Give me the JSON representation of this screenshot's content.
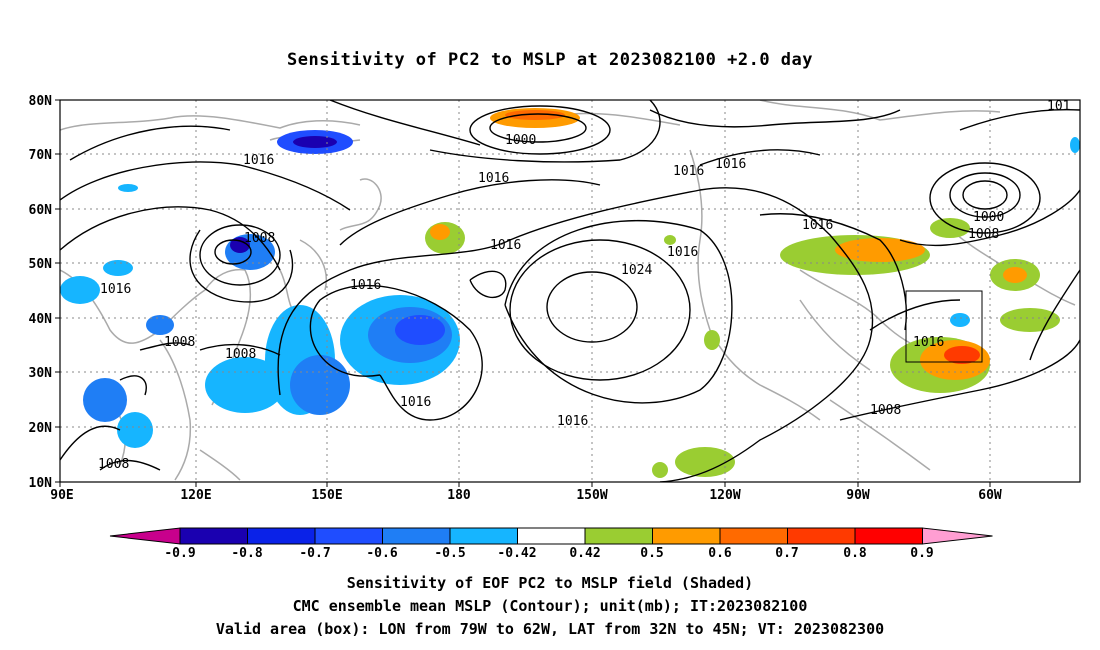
{
  "title": "Sensitivity of PC2 to MSLP at 2023082100 +2.0 day",
  "lat_labels": [
    "80N",
    "70N",
    "60N",
    "50N",
    "40N",
    "30N",
    "20N",
    "10N"
  ],
  "lon_labels": [
    "90E",
    "120E",
    "150E",
    "180",
    "150W",
    "120W",
    "90W",
    "60W"
  ],
  "contour_labels": [
    {
      "text": "1016"
    },
    {
      "text": "1016"
    },
    {
      "text": "1000"
    },
    {
      "text": "1016"
    },
    {
      "text": "1016"
    },
    {
      "text": "1008"
    },
    {
      "text": "1016"
    },
    {
      "text": "1016"
    },
    {
      "text": "1024"
    },
    {
      "text": "1016"
    },
    {
      "text": "1016"
    },
    {
      "text": "1000"
    },
    {
      "text": "1008"
    },
    {
      "text": "1008"
    },
    {
      "text": "1008"
    },
    {
      "text": "1016"
    },
    {
      "text": "1016"
    },
    {
      "text": "1016"
    },
    {
      "text": "1008"
    },
    {
      "text": "1008"
    },
    {
      "text": "101"
    }
  ],
  "colorbar": {
    "labels": [
      "-0.9",
      "-0.8",
      "-0.7",
      "-0.6",
      "-0.5",
      "-0.42",
      "0.42",
      "0.5",
      "0.6",
      "0.7",
      "0.8",
      "0.9"
    ],
    "colors": [
      "#1a00b0",
      "#0a22e8",
      "#1f4dff",
      "#1f7ef5",
      "#16b5ff",
      "#ffffff",
      "#9acd32",
      "#ff9b00",
      "#ff6a00",
      "#ff3a00",
      "#ff0000"
    ],
    "below_color": "#c8008c",
    "above_color": "#ff9ed2"
  },
  "captions": {
    "line1": "Sensitivity of EOF PC2 to MSLP field (Shaded)",
    "line2": "CMC ensemble mean MSLP (Contour); unit(mb); IT:2023082100",
    "line3": "Valid area (box): LON from 79W to 62W, LAT from 32N to 45N; VT: 2023082300"
  }
}
